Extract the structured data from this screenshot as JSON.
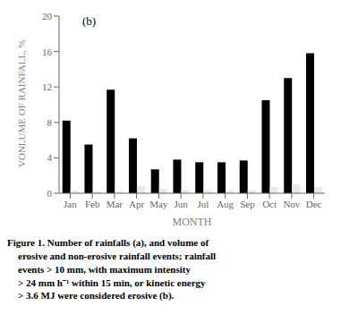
{
  "chart_data": {
    "type": "bar",
    "categories": [
      "Jan",
      "Feb",
      "Mar",
      "Apr",
      "May",
      "Jun",
      "Jul",
      "Aug",
      "Sep",
      "Oct",
      "Nov",
      "Dec"
    ],
    "series": [
      {
        "color": "#000000",
        "values": [
          8.2,
          5.5,
          11.7,
          6.2,
          2.7,
          3.8,
          3.5,
          3.5,
          3.7,
          10.5,
          13.0,
          15.8
        ]
      },
      {
        "color": "#e8e8e8",
        "values": [
          0.3,
          0.2,
          0.2,
          0.8,
          0.5,
          0.4,
          0.3,
          0.3,
          0.3,
          0.7,
          1.0,
          0.7
        ]
      }
    ],
    "xlabel": "MONTH",
    "ylabel": "VONLUME OF RAINFALL, %",
    "ylim": [
      0,
      20
    ],
    "yticks": [
      0,
      4,
      8,
      12,
      16,
      20
    ],
    "grid": false,
    "annotations": [
      "(b)",
      "Figure 1. Number of rainfalls (a), and volume of",
      "erosive and non-erosive rainfall events; rainfall",
      "events > 10 mm, with maximum intensity",
      "> 24 mm h⁻¹ within 15 min, or kinetic energy",
      "> 3.6 MJ were considered erosive (b)."
    ]
  }
}
